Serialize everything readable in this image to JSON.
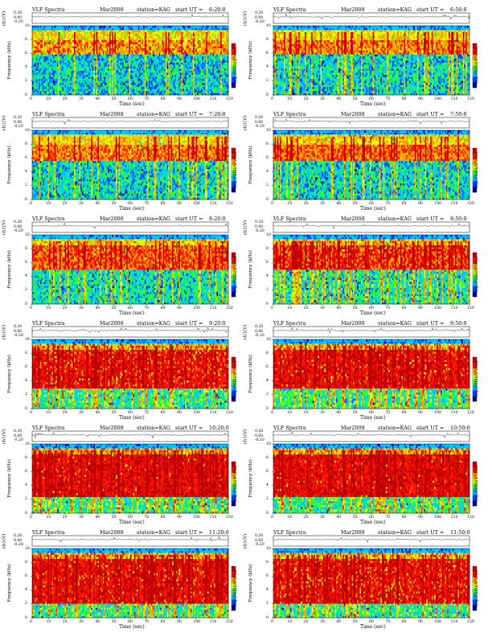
{
  "panel_titles": {
    "product": "VLF Spectra",
    "month": "Mar2008",
    "station": "station=KAG",
    "start_prefix": "start  UT  ="
  },
  "axis_text": {
    "ch1_label": "ch1(V)",
    "ch1_ticks": [
      "0.20",
      "0.00",
      "-0.20"
    ],
    "freq_label": "Frequency (kHz)",
    "freq_ticks": [
      "0",
      "2",
      "4",
      "6",
      "8",
      "10"
    ],
    "time_label": "Time (sec)",
    "time_ticks": [
      "0",
      "10",
      "20",
      "30",
      "40",
      "50",
      "60",
      "70",
      "80",
      "90",
      "100",
      "110",
      "120"
    ],
    "colorbar_label": "log(PSD)(V²/Hz)"
  },
  "colors": {
    "spectral_scale": [
      "#00008f",
      "#0044ff",
      "#00c8ff",
      "#30ff30",
      "#e0ff00",
      "#ffa000",
      "#ff1800",
      "#c00000"
    ]
  },
  "chart_data": [
    {
      "type": "heatmap",
      "start_ut": "6:20:0",
      "xlim": [
        0,
        120
      ],
      "ylim_khz": [
        0,
        10
      ],
      "ch1_ylim": [
        -0.2,
        0.2
      ],
      "intensity_band_khz": [
        6,
        8
      ],
      "activity": 0.25
    },
    {
      "type": "heatmap",
      "start_ut": "6:50:0",
      "xlim": [
        0,
        120
      ],
      "ylim_khz": [
        0,
        10
      ],
      "ch1_ylim": [
        -0.2,
        0.2
      ],
      "intensity_band_khz": [
        6,
        8
      ],
      "activity": 0.3
    },
    {
      "type": "heatmap",
      "start_ut": "7:20:0",
      "xlim": [
        0,
        120
      ],
      "ylim_khz": [
        0,
        10
      ],
      "ch1_ylim": [
        -0.2,
        0.2
      ],
      "intensity_band_khz": [
        5.5,
        8
      ],
      "activity": 0.35
    },
    {
      "type": "heatmap",
      "start_ut": "7:50:0",
      "xlim": [
        0,
        120
      ],
      "ylim_khz": [
        0,
        10
      ],
      "ch1_ylim": [
        -0.2,
        0.2
      ],
      "intensity_band_khz": [
        5.5,
        8
      ],
      "activity": 0.4
    },
    {
      "type": "heatmap",
      "start_ut": "8:20:0",
      "xlim": [
        0,
        120
      ],
      "ylim_khz": [
        0,
        10
      ],
      "ch1_ylim": [
        -0.2,
        0.2
      ],
      "intensity_band_khz": [
        5,
        8.5
      ],
      "activity": 0.5
    },
    {
      "type": "heatmap",
      "start_ut": "8:50:0",
      "xlim": [
        0,
        120
      ],
      "ylim_khz": [
        0,
        10
      ],
      "ch1_ylim": [
        -0.2,
        0.2
      ],
      "intensity_band_khz": [
        5,
        8.5
      ],
      "activity": 0.6
    },
    {
      "type": "heatmap",
      "start_ut": "9:20:0",
      "xlim": [
        0,
        120
      ],
      "ylim_khz": [
        0,
        10
      ],
      "ch1_ylim": [
        -0.2,
        0.2
      ],
      "intensity_band_khz": [
        3,
        8.5
      ],
      "activity": 0.75
    },
    {
      "type": "heatmap",
      "start_ut": "9:50:0",
      "xlim": [
        0,
        120
      ],
      "ylim_khz": [
        0,
        10
      ],
      "ch1_ylim": [
        -0.2,
        0.2
      ],
      "intensity_band_khz": [
        3,
        8.5
      ],
      "activity": 0.8
    },
    {
      "type": "heatmap",
      "start_ut": "10:20:0",
      "xlim": [
        0,
        120
      ],
      "ylim_khz": [
        0,
        10
      ],
      "ch1_ylim": [
        -0.2,
        0.2
      ],
      "intensity_band_khz": [
        2.5,
        8.5
      ],
      "activity": 0.85
    },
    {
      "type": "heatmap",
      "start_ut": "10:50:0",
      "xlim": [
        0,
        120
      ],
      "ylim_khz": [
        0,
        10
      ],
      "ch1_ylim": [
        -0.2,
        0.2
      ],
      "intensity_band_khz": [
        2.5,
        8.5
      ],
      "activity": 0.85
    },
    {
      "type": "heatmap",
      "start_ut": "11:20:0",
      "xlim": [
        0,
        120
      ],
      "ylim_khz": [
        0,
        10
      ],
      "ch1_ylim": [
        -0.2,
        0.2
      ],
      "intensity_band_khz": [
        2,
        8.5
      ],
      "activity": 0.8
    },
    {
      "type": "heatmap",
      "start_ut": "11:50:0",
      "xlim": [
        0,
        120
      ],
      "ylim_khz": [
        0,
        10
      ],
      "ch1_ylim": [
        -0.2,
        0.2
      ],
      "intensity_band_khz": [
        2,
        8.5
      ],
      "activity": 0.75
    }
  ]
}
